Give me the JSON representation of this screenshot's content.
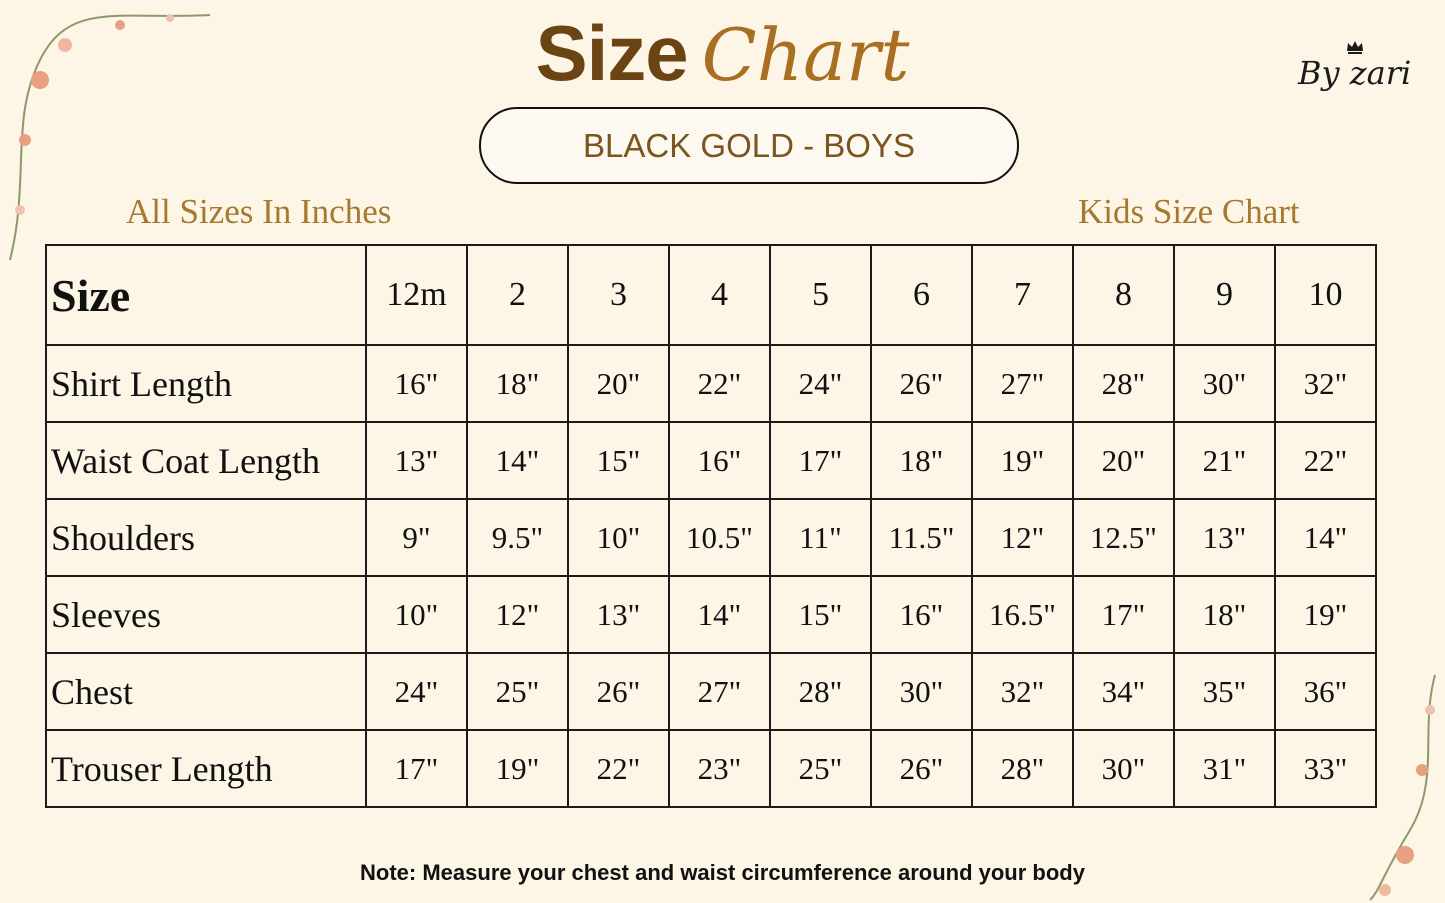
{
  "title": {
    "word1": "Size",
    "word2": "Chart"
  },
  "brand": "By zari",
  "product": "BLACK GOLD - BOYS",
  "subtitle_left": "All Sizes In Inches",
  "subtitle_right": "Kids Size Chart",
  "table": {
    "header": {
      "label": "Size",
      "sizes": [
        "12m",
        "2",
        "3",
        "4",
        "5",
        "6",
        "7",
        "8",
        "9",
        "10"
      ]
    },
    "rows": [
      {
        "label": "Shirt Length",
        "values": [
          "16\"",
          "18\"",
          "20\"",
          "22\"",
          "24\"",
          "26\"",
          "27\"",
          "28\"",
          "30\"",
          "32\""
        ]
      },
      {
        "label": "Waist Coat Length",
        "values": [
          "13\"",
          "14\"",
          "15\"",
          "16\"",
          "17\"",
          "18\"",
          "19\"",
          "20\"",
          "21\"",
          "22\""
        ]
      },
      {
        "label": "Shoulders",
        "values": [
          "9\"",
          "9.5\"",
          "10\"",
          "10.5\"",
          "11\"",
          "11.5\"",
          "12\"",
          "12.5\"",
          "13\"",
          "14\""
        ]
      },
      {
        "label": "Sleeves",
        "values": [
          "10\"",
          "12\"",
          "13\"",
          "14\"",
          "15\"",
          "16\"",
          "16.5\"",
          "17\"",
          "18\"",
          "19\""
        ]
      },
      {
        "label": "Chest",
        "values": [
          "24\"",
          "25\"",
          "26\"",
          "27\"",
          "28\"",
          "30\"",
          "32\"",
          "34\"",
          "35\"",
          "36\""
        ]
      },
      {
        "label": "Trouser Length",
        "values": [
          "17\"",
          "19\"",
          "22\"",
          "23\"",
          "25\"",
          "26\"",
          "28\"",
          "30\"",
          "31\"",
          "33\""
        ]
      }
    ]
  },
  "note": "Note: Measure your chest and waist circumference around your body",
  "colors": {
    "background": "#fdf6e6",
    "title_brown": "#6b4414",
    "title_gold": "#a86e22",
    "subtitle": "#a5792f"
  }
}
